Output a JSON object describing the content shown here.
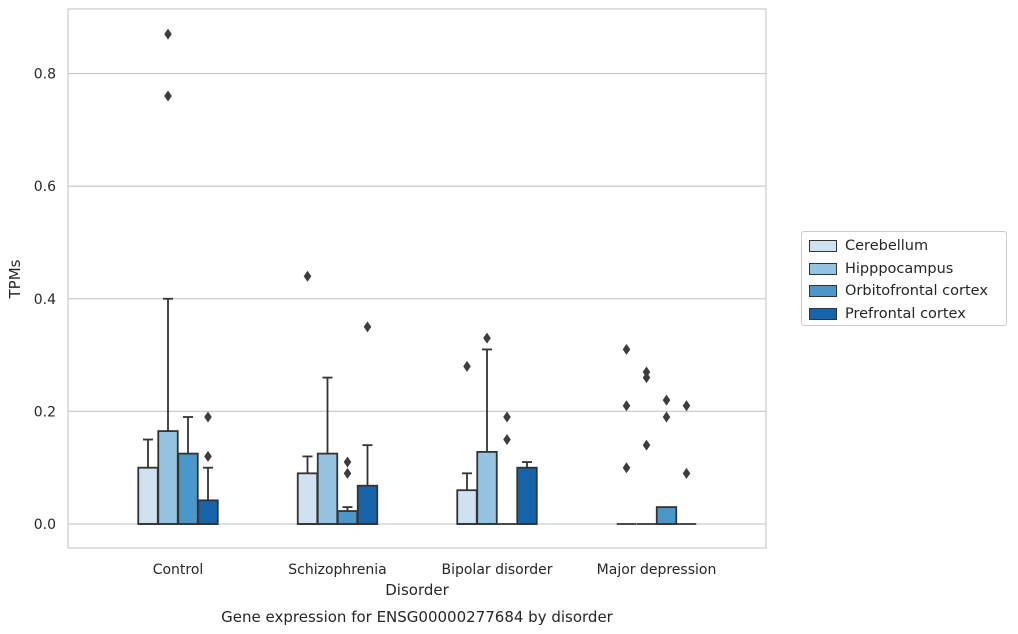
{
  "chart_data": {
    "type": "box",
    "title": "",
    "caption": "Gene expression for ENSG00000277684 by disorder",
    "xlabel": "Disorder",
    "ylabel": "TPMs",
    "ylim": [
      -0.04,
      0.92
    ],
    "yticks": [
      0.0,
      0.2,
      0.4,
      0.6,
      0.8
    ],
    "ytick_labels": [
      "0.0",
      "0.2",
      "0.4",
      "0.6",
      "0.8"
    ],
    "grid": "horizontal",
    "legend_position": "right",
    "categories": [
      "Control",
      "Schizophrenia",
      "Bipolar disorder",
      "Major depression"
    ],
    "series": [
      {
        "name": "Cerebellum",
        "color": "#d0e1f2",
        "boxes": [
          {
            "q1": 0.0,
            "median": 0.0,
            "q3": 0.1,
            "whisker_low": 0.0,
            "whisker_high": 0.15,
            "outliers": []
          },
          {
            "q1": 0.0,
            "median": 0.0,
            "q3": 0.09,
            "whisker_low": 0.0,
            "whisker_high": 0.12,
            "outliers": [
              0.44
            ]
          },
          {
            "q1": 0.0,
            "median": 0.0,
            "q3": 0.06,
            "whisker_low": 0.0,
            "whisker_high": 0.09,
            "outliers": [
              0.28
            ]
          },
          {
            "q1": 0.0,
            "median": 0.0,
            "q3": 0.0,
            "whisker_low": 0.0,
            "whisker_high": 0.0,
            "outliers": [
              0.31,
              0.21,
              0.1
            ]
          }
        ]
      },
      {
        "name": "Hipppocampus",
        "color": "#94c4df",
        "boxes": [
          {
            "q1": 0.0,
            "median": 0.0,
            "q3": 0.165,
            "whisker_low": 0.0,
            "whisker_high": 0.4,
            "outliers": [
              0.87,
              0.76
            ]
          },
          {
            "q1": 0.0,
            "median": 0.0,
            "q3": 0.125,
            "whisker_low": 0.0,
            "whisker_high": 0.26,
            "outliers": []
          },
          {
            "q1": 0.0,
            "median": 0.0,
            "q3": 0.128,
            "whisker_low": 0.0,
            "whisker_high": 0.31,
            "outliers": [
              0.33
            ]
          },
          {
            "q1": 0.0,
            "median": 0.0,
            "q3": 0.0,
            "whisker_low": 0.0,
            "whisker_high": 0.0,
            "outliers": [
              0.27,
              0.26,
              0.14
            ]
          }
        ]
      },
      {
        "name": "Orbitofrontal cortex",
        "color": "#4a98c9",
        "boxes": [
          {
            "q1": 0.0,
            "median": 0.0,
            "q3": 0.125,
            "whisker_low": 0.0,
            "whisker_high": 0.19,
            "outliers": []
          },
          {
            "q1": 0.0,
            "median": 0.0,
            "q3": 0.023,
            "whisker_low": 0.0,
            "whisker_high": 0.03,
            "outliers": [
              0.11,
              0.09
            ]
          },
          {
            "q1": 0.0,
            "median": 0.0,
            "q3": 0.0,
            "whisker_low": 0.0,
            "whisker_high": 0.0,
            "outliers": [
              0.19,
              0.15
            ]
          },
          {
            "q1": 0.0,
            "median": 0.0,
            "q3": 0.03,
            "whisker_low": 0.0,
            "whisker_high": 0.03,
            "outliers": [
              0.22,
              0.19
            ]
          }
        ]
      },
      {
        "name": "Prefrontal cortex",
        "color": "#1764ab",
        "boxes": [
          {
            "q1": 0.0,
            "median": 0.0,
            "q3": 0.042,
            "whisker_low": 0.0,
            "whisker_high": 0.1,
            "outliers": [
              0.19,
              0.12
            ]
          },
          {
            "q1": 0.0,
            "median": 0.0,
            "q3": 0.068,
            "whisker_low": 0.0,
            "whisker_high": 0.14,
            "outliers": [
              0.35
            ]
          },
          {
            "q1": 0.0,
            "median": 0.0,
            "q3": 0.1,
            "whisker_low": 0.0,
            "whisker_high": 0.11,
            "outliers": []
          },
          {
            "q1": 0.0,
            "median": 0.0,
            "q3": 0.0,
            "whisker_low": 0.0,
            "whisker_high": 0.0,
            "outliers": [
              0.21,
              0.09
            ]
          }
        ]
      }
    ]
  }
}
